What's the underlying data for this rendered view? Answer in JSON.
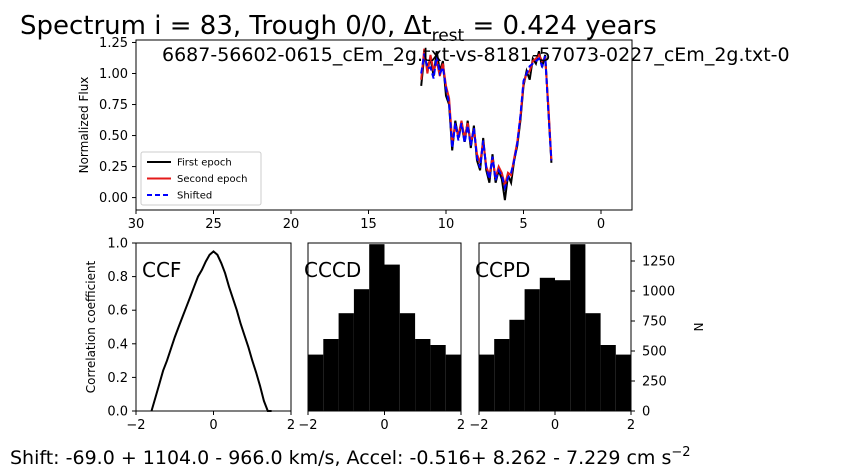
{
  "figure": {
    "title_prefix": "Spectrum i = 83, Trough 0/0, Δt",
    "title_sub": "rest",
    "title_suffix": " = 0.424 years",
    "file_label": "6687-56602-0615_cEm_2g.txt-vs-8181-57073-0227_cEm_2g.txt-0",
    "footer_main": "Shift: -69.0 + 1104.0 - 966.0 km/s, Accel: -0.516+ 8.262 - 7.229 cm s",
    "footer_sup": "−2"
  },
  "chart_data": [
    {
      "id": "spectrum",
      "type": "line",
      "ylabel": "Normalized Flux",
      "xlabel": "",
      "xlim": [
        30,
        -2
      ],
      "ylim": [
        -0.1,
        1.27
      ],
      "xticks": [
        30,
        25,
        20,
        15,
        10,
        5,
        0
      ],
      "yticks": [
        0.0,
        0.25,
        0.5,
        0.75,
        1.0,
        1.25
      ],
      "xtick_labels": [
        "30",
        "25",
        "20",
        "15",
        "10",
        "5",
        "0"
      ],
      "ytick_labels": [
        "0.00",
        "0.25",
        "0.50",
        "0.75",
        "1.00",
        "1.25"
      ],
      "legend_position": "lower-left",
      "series": [
        {
          "name": "First epoch",
          "color": "#000000",
          "style": "solid",
          "x": [
            11.6,
            11.4,
            11.2,
            11.0,
            10.8,
            10.6,
            10.4,
            10.2,
            10.0,
            9.8,
            9.6,
            9.4,
            9.2,
            9.0,
            8.8,
            8.6,
            8.4,
            8.2,
            8.0,
            7.8,
            7.6,
            7.4,
            7.2,
            7.0,
            6.8,
            6.6,
            6.4,
            6.2,
            6.0,
            5.8,
            5.6,
            5.4,
            5.2,
            5.0,
            4.8,
            4.6,
            4.4,
            4.2,
            4.0,
            3.8,
            3.6,
            3.4,
            3.2
          ],
          "y": [
            0.9,
            1.15,
            1.05,
            1.12,
            0.98,
            1.18,
            1.02,
            1.1,
            0.82,
            0.75,
            0.38,
            0.62,
            0.48,
            0.6,
            0.45,
            0.62,
            0.4,
            0.58,
            0.3,
            0.22,
            0.48,
            0.22,
            0.12,
            0.35,
            0.12,
            0.22,
            0.15,
            -0.02,
            0.18,
            0.12,
            0.3,
            0.42,
            0.62,
            0.9,
            1.02,
            0.95,
            1.12,
            1.08,
            1.18,
            1.05,
            1.15,
            0.72,
            0.28
          ]
        },
        {
          "name": "Second epoch",
          "color": "#e41a1a",
          "style": "solid",
          "x": [
            11.6,
            11.4,
            11.2,
            11.0,
            10.8,
            10.6,
            10.4,
            10.2,
            10.0,
            9.8,
            9.6,
            9.4,
            9.2,
            9.0,
            8.8,
            8.6,
            8.4,
            8.2,
            8.0,
            7.8,
            7.6,
            7.4,
            7.2,
            7.0,
            6.8,
            6.6,
            6.4,
            6.2,
            6.0,
            5.8,
            5.6,
            5.4,
            5.2,
            5.0,
            4.8,
            4.6,
            4.4,
            4.2,
            4.0,
            3.8,
            3.6,
            3.4,
            3.2
          ],
          "y": [
            0.95,
            1.2,
            1.0,
            1.15,
            1.02,
            1.1,
            0.98,
            1.08,
            0.9,
            0.8,
            0.45,
            0.58,
            0.5,
            0.62,
            0.48,
            0.6,
            0.44,
            0.55,
            0.35,
            0.28,
            0.45,
            0.25,
            0.18,
            0.32,
            0.16,
            0.25,
            0.2,
            0.1,
            0.2,
            0.18,
            0.32,
            0.45,
            0.65,
            0.92,
            1.0,
            1.02,
            1.1,
            1.12,
            1.15,
            1.1,
            1.12,
            0.75,
            0.3
          ]
        },
        {
          "name": "Shifted",
          "color": "#0000ff",
          "style": "dashed",
          "x": [
            11.6,
            11.4,
            11.2,
            11.0,
            10.8,
            10.6,
            10.4,
            10.2,
            10.0,
            9.8,
            9.6,
            9.4,
            9.2,
            9.0,
            8.8,
            8.6,
            8.4,
            8.2,
            8.0,
            7.8,
            7.6,
            7.4,
            7.2,
            7.0,
            6.8,
            6.6,
            6.4,
            6.2,
            6.0,
            5.8,
            5.6,
            5.4,
            5.2,
            5.0,
            4.8,
            4.6,
            4.4,
            4.2,
            4.0,
            3.8,
            3.6,
            3.4,
            3.2
          ],
          "y": [
            1.0,
            1.16,
            1.04,
            1.05,
            0.96,
            1.14,
            1.0,
            1.05,
            0.88,
            0.76,
            0.4,
            0.6,
            0.46,
            0.6,
            0.44,
            0.58,
            0.42,
            0.56,
            0.32,
            0.24,
            0.46,
            0.24,
            0.15,
            0.33,
            0.14,
            0.22,
            0.18,
            0.08,
            0.16,
            0.2,
            0.3,
            0.44,
            0.66,
            0.94,
            1.0,
            1.06,
            1.08,
            1.1,
            1.12,
            1.06,
            1.14,
            0.7,
            0.3
          ]
        }
      ]
    },
    {
      "id": "ccf",
      "type": "line",
      "label": "CCF",
      "ylabel": "Correlation coefficient",
      "xlim": [
        -2,
        2
      ],
      "ylim": [
        0,
        1
      ],
      "xticks": [
        -2,
        0,
        2
      ],
      "yticks": [
        0.0,
        0.2,
        0.4,
        0.6,
        0.8,
        1.0
      ],
      "xtick_labels": [
        "−2",
        "0",
        "2"
      ],
      "ytick_labels": [
        "0.0",
        "0.2",
        "0.4",
        "0.6",
        "0.8",
        "1.0"
      ],
      "series": [
        {
          "color": "#000000",
          "x": [
            -1.6,
            -1.5,
            -1.4,
            -1.3,
            -1.2,
            -1.1,
            -1.0,
            -0.9,
            -0.8,
            -0.7,
            -0.6,
            -0.5,
            -0.4,
            -0.3,
            -0.2,
            -0.1,
            0.0,
            0.1,
            0.2,
            0.3,
            0.4,
            0.5,
            0.6,
            0.7,
            0.8,
            0.9,
            1.0,
            1.1,
            1.2,
            1.3,
            1.4,
            1.5
          ],
          "y": [
            0.0,
            0.08,
            0.16,
            0.24,
            0.3,
            0.37,
            0.44,
            0.5,
            0.56,
            0.62,
            0.68,
            0.74,
            0.8,
            0.84,
            0.89,
            0.93,
            0.95,
            0.93,
            0.88,
            0.82,
            0.74,
            0.67,
            0.6,
            0.52,
            0.45,
            0.38,
            0.3,
            0.23,
            0.15,
            0.06,
            0.0,
            0.0
          ]
        }
      ]
    },
    {
      "id": "cccd",
      "type": "bar",
      "label": "CCCD",
      "xlim": [
        -2,
        2
      ],
      "ylim": [
        0,
        1400
      ],
      "xticks": [
        -2,
        0,
        2
      ],
      "xtick_labels": [
        "−2",
        "0",
        "2"
      ],
      "bin_edges": [
        -2.0,
        -1.6,
        -1.2,
        -0.8,
        -0.4,
        0.0,
        0.4,
        0.8,
        1.2,
        1.6,
        2.0
      ],
      "values": [
        470,
        600,
        815,
        1015,
        1390,
        1220,
        815,
        600,
        550,
        470
      ]
    },
    {
      "id": "ccpd",
      "type": "bar",
      "label": "CCPD",
      "ylabel": "N",
      "xlim": [
        -2,
        2
      ],
      "ylim": [
        0,
        1400
      ],
      "xticks": [
        -2,
        0,
        2
      ],
      "yticks": [
        0,
        250,
        500,
        750,
        1000,
        1250
      ],
      "xtick_labels": [
        "−2",
        "0",
        "2"
      ],
      "ytick_labels": [
        "0",
        "250",
        "500",
        "750",
        "1000",
        "1250"
      ],
      "bin_edges": [
        -2.0,
        -1.6,
        -1.2,
        -0.8,
        -0.4,
        0.0,
        0.4,
        0.8,
        1.2,
        1.6,
        2.0
      ],
      "values": [
        470,
        600,
        760,
        1015,
        1110,
        1090,
        1390,
        815,
        550,
        470
      ]
    }
  ]
}
